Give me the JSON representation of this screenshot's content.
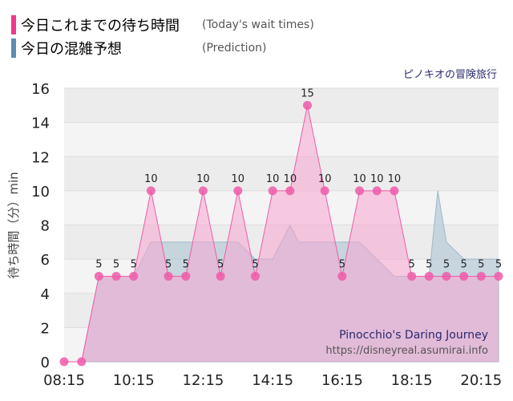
{
  "legend": [
    {
      "label": "今日これまでの待ち時間",
      "sub": "(Today's wait times)",
      "color": "#f0388e"
    },
    {
      "label": "今日の混雑予想",
      "sub": "(Prediction)",
      "color": "#5b8db5"
    }
  ],
  "attraction_jp": "ピノキオの冒険旅行",
  "watermark": {
    "title": "Pinocchio's Daring Journey",
    "url": "https://disneyreal.asumirai.info"
  },
  "colors": {
    "actual": "#ef5ba9",
    "actual_fill": "#f7a6d1",
    "prediction_fill": "#b9ccd8",
    "prediction_line": "#9fb7c8"
  },
  "chart_data": {
    "type": "area",
    "ylabel": "待ち時間（分）min",
    "ylim": [
      0,
      16
    ],
    "yticks": [
      0,
      2,
      4,
      6,
      8,
      10,
      12,
      14,
      16
    ],
    "xticks": [
      "08:15",
      "10:15",
      "12:15",
      "14:15",
      "16:15",
      "18:15",
      "20:15"
    ],
    "series": [
      {
        "name": "今日これまでの待ち時間",
        "x": [
          "08:15",
          "08:45",
          "09:15",
          "09:45",
          "10:15",
          "10:45",
          "11:15",
          "11:45",
          "12:15",
          "12:45",
          "13:15",
          "13:45",
          "14:15",
          "14:45",
          "15:15",
          "15:45",
          "16:15",
          "16:45",
          "17:15",
          "17:45",
          "18:15",
          "18:45",
          "19:15",
          "19:45",
          "20:15",
          "20:45"
        ],
        "values": [
          0,
          0,
          5,
          5,
          5,
          10,
          5,
          5,
          10,
          5,
          10,
          5,
          10,
          10,
          15,
          10,
          5,
          10,
          10,
          10,
          5,
          5,
          5,
          5,
          5,
          5
        ]
      },
      {
        "name": "今日の混雑予想",
        "x": [
          "08:15",
          "08:45",
          "09:15",
          "09:45",
          "10:15",
          "10:45",
          "11:15",
          "11:45",
          "12:15",
          "12:45",
          "13:15",
          "13:45",
          "14:15",
          "14:45",
          "15:00",
          "15:15",
          "15:45",
          "16:15",
          "16:45",
          "17:15",
          "17:45",
          "18:15",
          "18:45",
          "19:00",
          "19:15",
          "19:45",
          "20:15",
          "20:45"
        ],
        "values": [
          0,
          0,
          5,
          5,
          5,
          7,
          7,
          7,
          7,
          7,
          7,
          6,
          6,
          8,
          7,
          7,
          7,
          7,
          7,
          6,
          5,
          5,
          5,
          10,
          7,
          6,
          6,
          6
        ]
      }
    ]
  }
}
